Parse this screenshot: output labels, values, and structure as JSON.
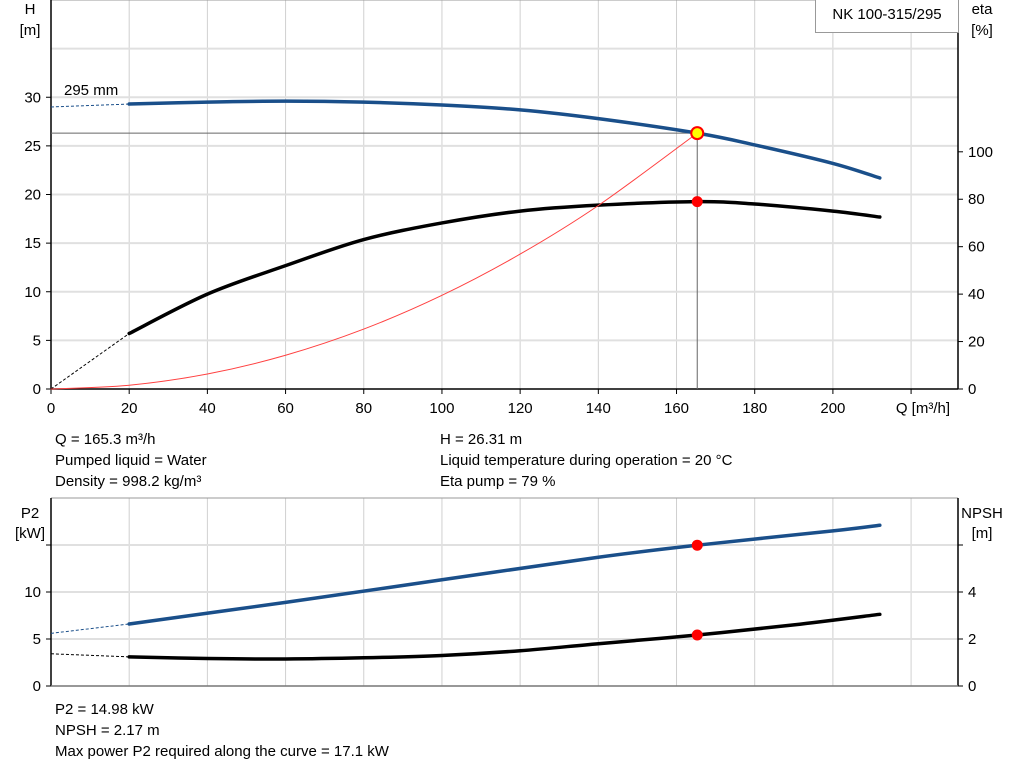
{
  "title": "NK 100-315/295",
  "colors": {
    "head": "#1a4f8a",
    "eta": "#000000",
    "system": "#ff4040",
    "point": "#ff0000",
    "point_highlight": "#ffff00",
    "grid": "#d0d0d0"
  },
  "info_top": {
    "left": [
      "Q = 165.3 m³/h",
      "Pumped liquid = Water",
      "Density = 998.2 kg/m³"
    ],
    "right": [
      "H = 26.31 m",
      "Liquid temperature during operation = 20 °C",
      "Eta pump = 79 %"
    ]
  },
  "info_bottom": [
    "P2 = 14.98 kW",
    "NPSH = 2.17 m",
    "Max power P2 required along the curve = 17.1 kW"
  ],
  "chart_data": [
    {
      "type": "line",
      "xlabel": "Q [m³/h]",
      "ylabel_left": [
        "H",
        "[m]"
      ],
      "ylabel_right": [
        "eta",
        "[%]"
      ],
      "xlim": [
        0,
        232
      ],
      "ylim_left": [
        0,
        40
      ],
      "ylim_right": [
        0,
        164
      ],
      "xticks": [
        0,
        20,
        40,
        60,
        80,
        100,
        120,
        140,
        160,
        180,
        200
      ],
      "yticks_left": [
        0,
        5,
        10,
        15,
        20,
        25,
        30
      ],
      "yticks_right": [
        0,
        20,
        40,
        60,
        80,
        100
      ],
      "grid": true,
      "annotation": "295 mm",
      "operating_point": {
        "Q": 165.3,
        "H": 26.31,
        "eta": 79
      },
      "series": [
        {
          "key": "head",
          "axis": "left",
          "x": [
            20,
            40,
            60,
            80,
            100,
            120,
            140,
            165.3,
            180,
            200,
            212
          ],
          "y": [
            29.3,
            29.5,
            29.6,
            29.5,
            29.2,
            28.7,
            27.8,
            26.31,
            25.1,
            23.2,
            21.7
          ],
          "extrapolated": {
            "x": [
              0,
              20
            ],
            "y": [
              29.0,
              29.3
            ]
          }
        },
        {
          "key": "eta",
          "axis": "right",
          "x": [
            20,
            40,
            60,
            80,
            100,
            120,
            140,
            165.3,
            180,
            200,
            212
          ],
          "y": [
            23.4,
            40,
            52,
            63,
            70,
            75,
            77.5,
            79,
            78,
            75,
            72.5
          ],
          "extrapolated": {
            "x": [
              0,
              20
            ],
            "y": [
              0,
              23.4
            ]
          }
        },
        {
          "key": "system",
          "axis": "left",
          "x": [
            0,
            20,
            40,
            60,
            80,
            100,
            120,
            140,
            165.3
          ],
          "y": [
            0,
            0.39,
            1.54,
            3.47,
            6.16,
            9.63,
            13.87,
            18.87,
            26.31
          ]
        }
      ]
    },
    {
      "type": "line",
      "ylabel_left": [
        "P2",
        "[kW]"
      ],
      "ylabel_right": [
        "NPSH",
        "[m]"
      ],
      "xlim": [
        0,
        232
      ],
      "ylim_left": [
        0,
        20
      ],
      "ylim_right": [
        0,
        8
      ],
      "yticks_left": [
        0,
        5,
        10
      ],
      "yticks_right": [
        0,
        2,
        4
      ],
      "grid": true,
      "operating_point": {
        "Q": 165.3,
        "P2": 14.98,
        "NPSH": 2.17
      },
      "series": [
        {
          "key": "power",
          "axis": "left",
          "x": [
            20,
            60,
            100,
            140,
            165.3,
            200,
            212
          ],
          "y": [
            6.6,
            8.9,
            11.3,
            13.7,
            14.98,
            16.5,
            17.1
          ],
          "extrapolated": {
            "x": [
              0,
              20
            ],
            "y": [
              5.6,
              6.6
            ]
          }
        },
        {
          "key": "npsh",
          "axis": "right",
          "x": [
            20,
            40,
            60,
            80,
            100,
            120,
            140,
            165.3,
            190,
            212
          ],
          "y": [
            1.24,
            1.17,
            1.15,
            1.2,
            1.3,
            1.5,
            1.8,
            2.17,
            2.6,
            3.05
          ],
          "extrapolated": {
            "x": [
              0,
              20
            ],
            "y": [
              1.37,
              1.24
            ]
          }
        }
      ]
    }
  ]
}
